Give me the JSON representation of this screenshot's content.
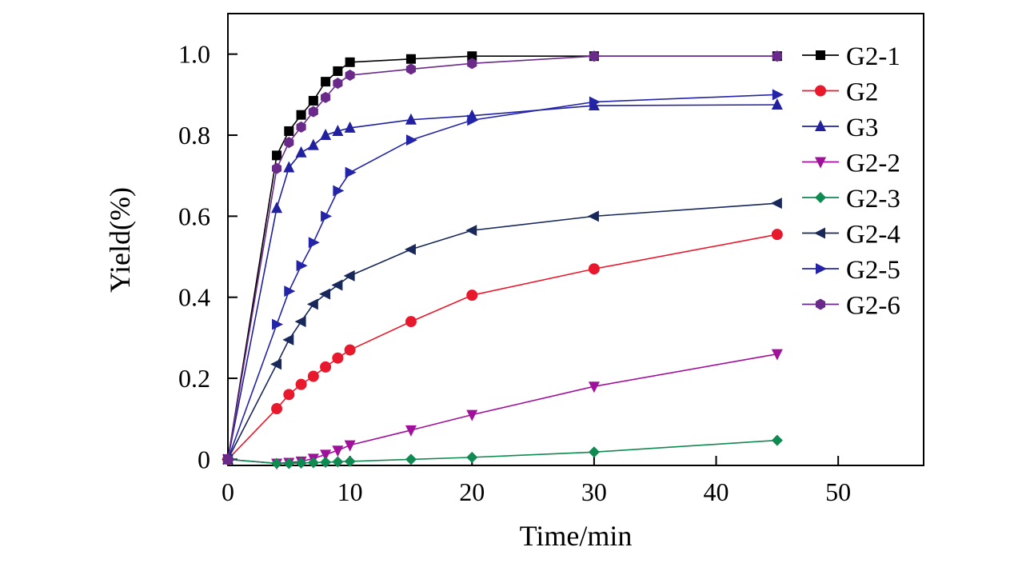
{
  "chart_data": {
    "type": "line",
    "title": "",
    "xlabel": "Time/min",
    "ylabel": "Yield(%)",
    "xlim": [
      0,
      57
    ],
    "ylim": [
      -0.015,
      1.1
    ],
    "xticks": [
      0,
      10,
      20,
      30,
      40,
      50
    ],
    "xtick_labels": [
      "0",
      "10",
      "20",
      "30",
      "40",
      "50"
    ],
    "yticks": [
      0,
      0.2,
      0.4,
      0.6,
      0.8,
      1.0
    ],
    "ytick_labels": [
      "0",
      "0.2",
      "0.4",
      "0.6",
      "0.8",
      "1.0"
    ],
    "grid": false,
    "legend_position": "right",
    "series": [
      {
        "name": "G2-1",
        "color": "#000000",
        "marker": "square",
        "x": [
          0,
          4,
          5,
          6,
          7,
          8,
          9,
          10,
          15,
          20,
          30,
          45
        ],
        "y": [
          0,
          0.75,
          0.81,
          0.85,
          0.885,
          0.932,
          0.958,
          0.98,
          0.988,
          0.995,
          0.995,
          0.995
        ]
      },
      {
        "name": "G2",
        "color": "#e8192c",
        "marker": "circle",
        "x": [
          0,
          4,
          5,
          6,
          7,
          8,
          9,
          10,
          15,
          20,
          30,
          45
        ],
        "y": [
          0,
          0.125,
          0.16,
          0.185,
          0.205,
          0.228,
          0.25,
          0.27,
          0.34,
          0.405,
          0.47,
          0.555
        ]
      },
      {
        "name": "G3",
        "color": "#2020a0",
        "marker": "triangle-up",
        "x": [
          0,
          4,
          5,
          6,
          7,
          8,
          9,
          10,
          15,
          20,
          30,
          45
        ],
        "y": [
          0,
          0.62,
          0.72,
          0.757,
          0.775,
          0.8,
          0.81,
          0.818,
          0.838,
          0.848,
          0.873,
          0.875
        ]
      },
      {
        "name": "G2-2",
        "color": "#a0109a",
        "marker": "triangle-down",
        "x": [
          0,
          4,
          5,
          6,
          7,
          8,
          9,
          10,
          15,
          20,
          30,
          45
        ],
        "y": [
          0,
          -0.01,
          -0.008,
          -0.005,
          0.002,
          0.012,
          0.022,
          0.035,
          0.072,
          0.11,
          0.18,
          0.26
        ]
      },
      {
        "name": "G2-3",
        "color": "#0f8a50",
        "marker": "diamond",
        "x": [
          0,
          4,
          5,
          6,
          7,
          8,
          9,
          10,
          15,
          20,
          30,
          45
        ],
        "y": [
          0,
          -0.01,
          -0.01,
          -0.009,
          -0.008,
          -0.007,
          -0.006,
          -0.005,
          0.0,
          0.005,
          0.018,
          0.047
        ]
      },
      {
        "name": "G2-4",
        "color": "#18285a",
        "marker": "triangle-left",
        "x": [
          0,
          4,
          5,
          6,
          7,
          8,
          9,
          10,
          15,
          20,
          30,
          45
        ],
        "y": [
          0,
          0.235,
          0.295,
          0.34,
          0.383,
          0.408,
          0.43,
          0.453,
          0.518,
          0.565,
          0.6,
          0.632
        ]
      },
      {
        "name": "G2-5",
        "color": "#2424a8",
        "marker": "triangle-right",
        "x": [
          0,
          4,
          5,
          6,
          7,
          8,
          9,
          10,
          15,
          20,
          30,
          45
        ],
        "y": [
          0,
          0.333,
          0.415,
          0.478,
          0.535,
          0.6,
          0.663,
          0.708,
          0.788,
          0.837,
          0.882,
          0.9
        ]
      },
      {
        "name": "G2-6",
        "color": "#6a2a8a",
        "marker": "hexagon",
        "x": [
          0,
          4,
          5,
          6,
          7,
          8,
          9,
          10,
          15,
          20,
          30,
          45
        ],
        "y": [
          0,
          0.718,
          0.782,
          0.82,
          0.858,
          0.893,
          0.928,
          0.948,
          0.963,
          0.977,
          0.995,
          0.995
        ]
      }
    ]
  }
}
